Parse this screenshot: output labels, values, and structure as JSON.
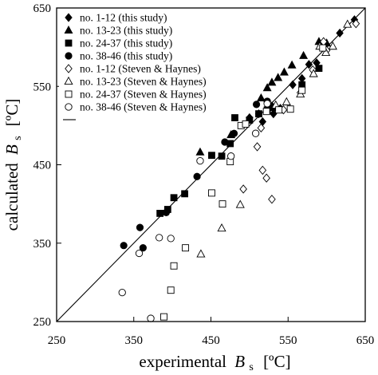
{
  "chart_data": {
    "type": "scatter",
    "xlabel": {
      "main": "experimental",
      "sym": "B",
      "sub": "s",
      "unit": "[ºC]"
    },
    "ylabel": {
      "main": "calculated",
      "sym": "B",
      "sub": "s",
      "unit": "[ºC]"
    },
    "xlim": [
      250,
      650
    ],
    "ylim": [
      250,
      650
    ],
    "x_ticks": [
      "250",
      "350",
      "450",
      "550",
      "650"
    ],
    "y_ticks": [
      "250",
      "350",
      "450",
      "550",
      "650"
    ],
    "reference_line": {
      "from": [
        250,
        250
      ],
      "to": [
        650,
        650
      ]
    },
    "legend_position": "top-left",
    "series": [
      {
        "name": "no.  1-12  (this study)",
        "marker": "diamond",
        "filled": true,
        "points": [
          [
            517,
            505
          ],
          [
            531,
            515
          ],
          [
            540,
            522
          ],
          [
            556,
            552
          ],
          [
            568,
            560
          ],
          [
            577,
            578
          ],
          [
            587,
            580
          ],
          [
            617,
            618
          ],
          [
            636,
            635
          ],
          [
            529,
            525
          ],
          [
            500,
            510
          ],
          [
            512,
            515
          ]
        ]
      },
      {
        "name": "no. 13-23  (this study)",
        "marker": "triangle",
        "filled": true,
        "points": [
          [
            436,
            466
          ],
          [
            476,
            488
          ],
          [
            523,
            548
          ],
          [
            529,
            555
          ],
          [
            537,
            561
          ],
          [
            545,
            568
          ],
          [
            555,
            577
          ],
          [
            570,
            589
          ],
          [
            590,
            607
          ],
          [
            600,
            605
          ],
          [
            515,
            535
          ]
        ]
      },
      {
        "name": "no. 24-37  (this study)",
        "marker": "square",
        "filled": true,
        "points": [
          [
            384,
            388
          ],
          [
            394,
            393
          ],
          [
            402,
            408
          ],
          [
            416,
            413
          ],
          [
            451,
            462
          ],
          [
            464,
            461
          ],
          [
            475,
            477
          ],
          [
            481,
            510
          ],
          [
            500,
            507
          ],
          [
            512,
            515
          ],
          [
            523,
            520
          ],
          [
            532,
            523
          ],
          [
            568,
            552
          ],
          [
            590,
            573
          ]
        ]
      },
      {
        "name": "no. 38-46  (this study)",
        "marker": "circle",
        "filled": true,
        "points": [
          [
            337,
            347
          ],
          [
            358,
            370
          ],
          [
            362,
            344
          ],
          [
            392,
            389
          ],
          [
            432,
            435
          ],
          [
            468,
            479
          ],
          [
            480,
            490
          ],
          [
            509,
            527
          ],
          [
            523,
            531
          ]
        ]
      },
      {
        "name": "no.  1-12  (Steven & Haynes)",
        "marker": "diamond",
        "filled": false,
        "points": [
          [
            492,
            419
          ],
          [
            510,
            473
          ],
          [
            515,
            497
          ],
          [
            517,
            443
          ],
          [
            522,
            433
          ],
          [
            529,
            406
          ],
          [
            544,
            520
          ],
          [
            566,
            542
          ],
          [
            582,
            571
          ],
          [
            596,
            607
          ],
          [
            638,
            630
          ],
          [
            600,
            596
          ]
        ]
      },
      {
        "name": "no. 13-23  (Steven & Haynes)",
        "marker": "triangle",
        "filled": false,
        "points": [
          [
            437,
            336
          ],
          [
            464,
            369
          ],
          [
            488,
            399
          ],
          [
            534,
            526
          ],
          [
            548,
            530
          ],
          [
            566,
            540
          ],
          [
            583,
            566
          ],
          [
            591,
            601
          ],
          [
            599,
            593
          ],
          [
            608,
            601
          ],
          [
            627,
            629
          ]
        ]
      },
      {
        "name": "no. 24-37  (Steven & Haynes)",
        "marker": "square",
        "filled": false,
        "points": [
          [
            389,
            256
          ],
          [
            398,
            290
          ],
          [
            402,
            321
          ],
          [
            417,
            344
          ],
          [
            451,
            414
          ],
          [
            465,
            400
          ],
          [
            475,
            454
          ],
          [
            489,
            500
          ],
          [
            495,
            502
          ],
          [
            522,
            518
          ],
          [
            538,
            520
          ],
          [
            553,
            521
          ],
          [
            568,
            545
          ],
          [
            595,
            599
          ]
        ]
      },
      {
        "name": "no. 38-46  (Steven & Haynes)",
        "marker": "circle",
        "filled": false,
        "points": [
          [
            335,
            287
          ],
          [
            357,
            337
          ],
          [
            372,
            254
          ],
          [
            383,
            357
          ],
          [
            398,
            356
          ],
          [
            436,
            455
          ],
          [
            476,
            461
          ],
          [
            508,
            490
          ],
          [
            523,
            528
          ]
        ]
      }
    ]
  }
}
